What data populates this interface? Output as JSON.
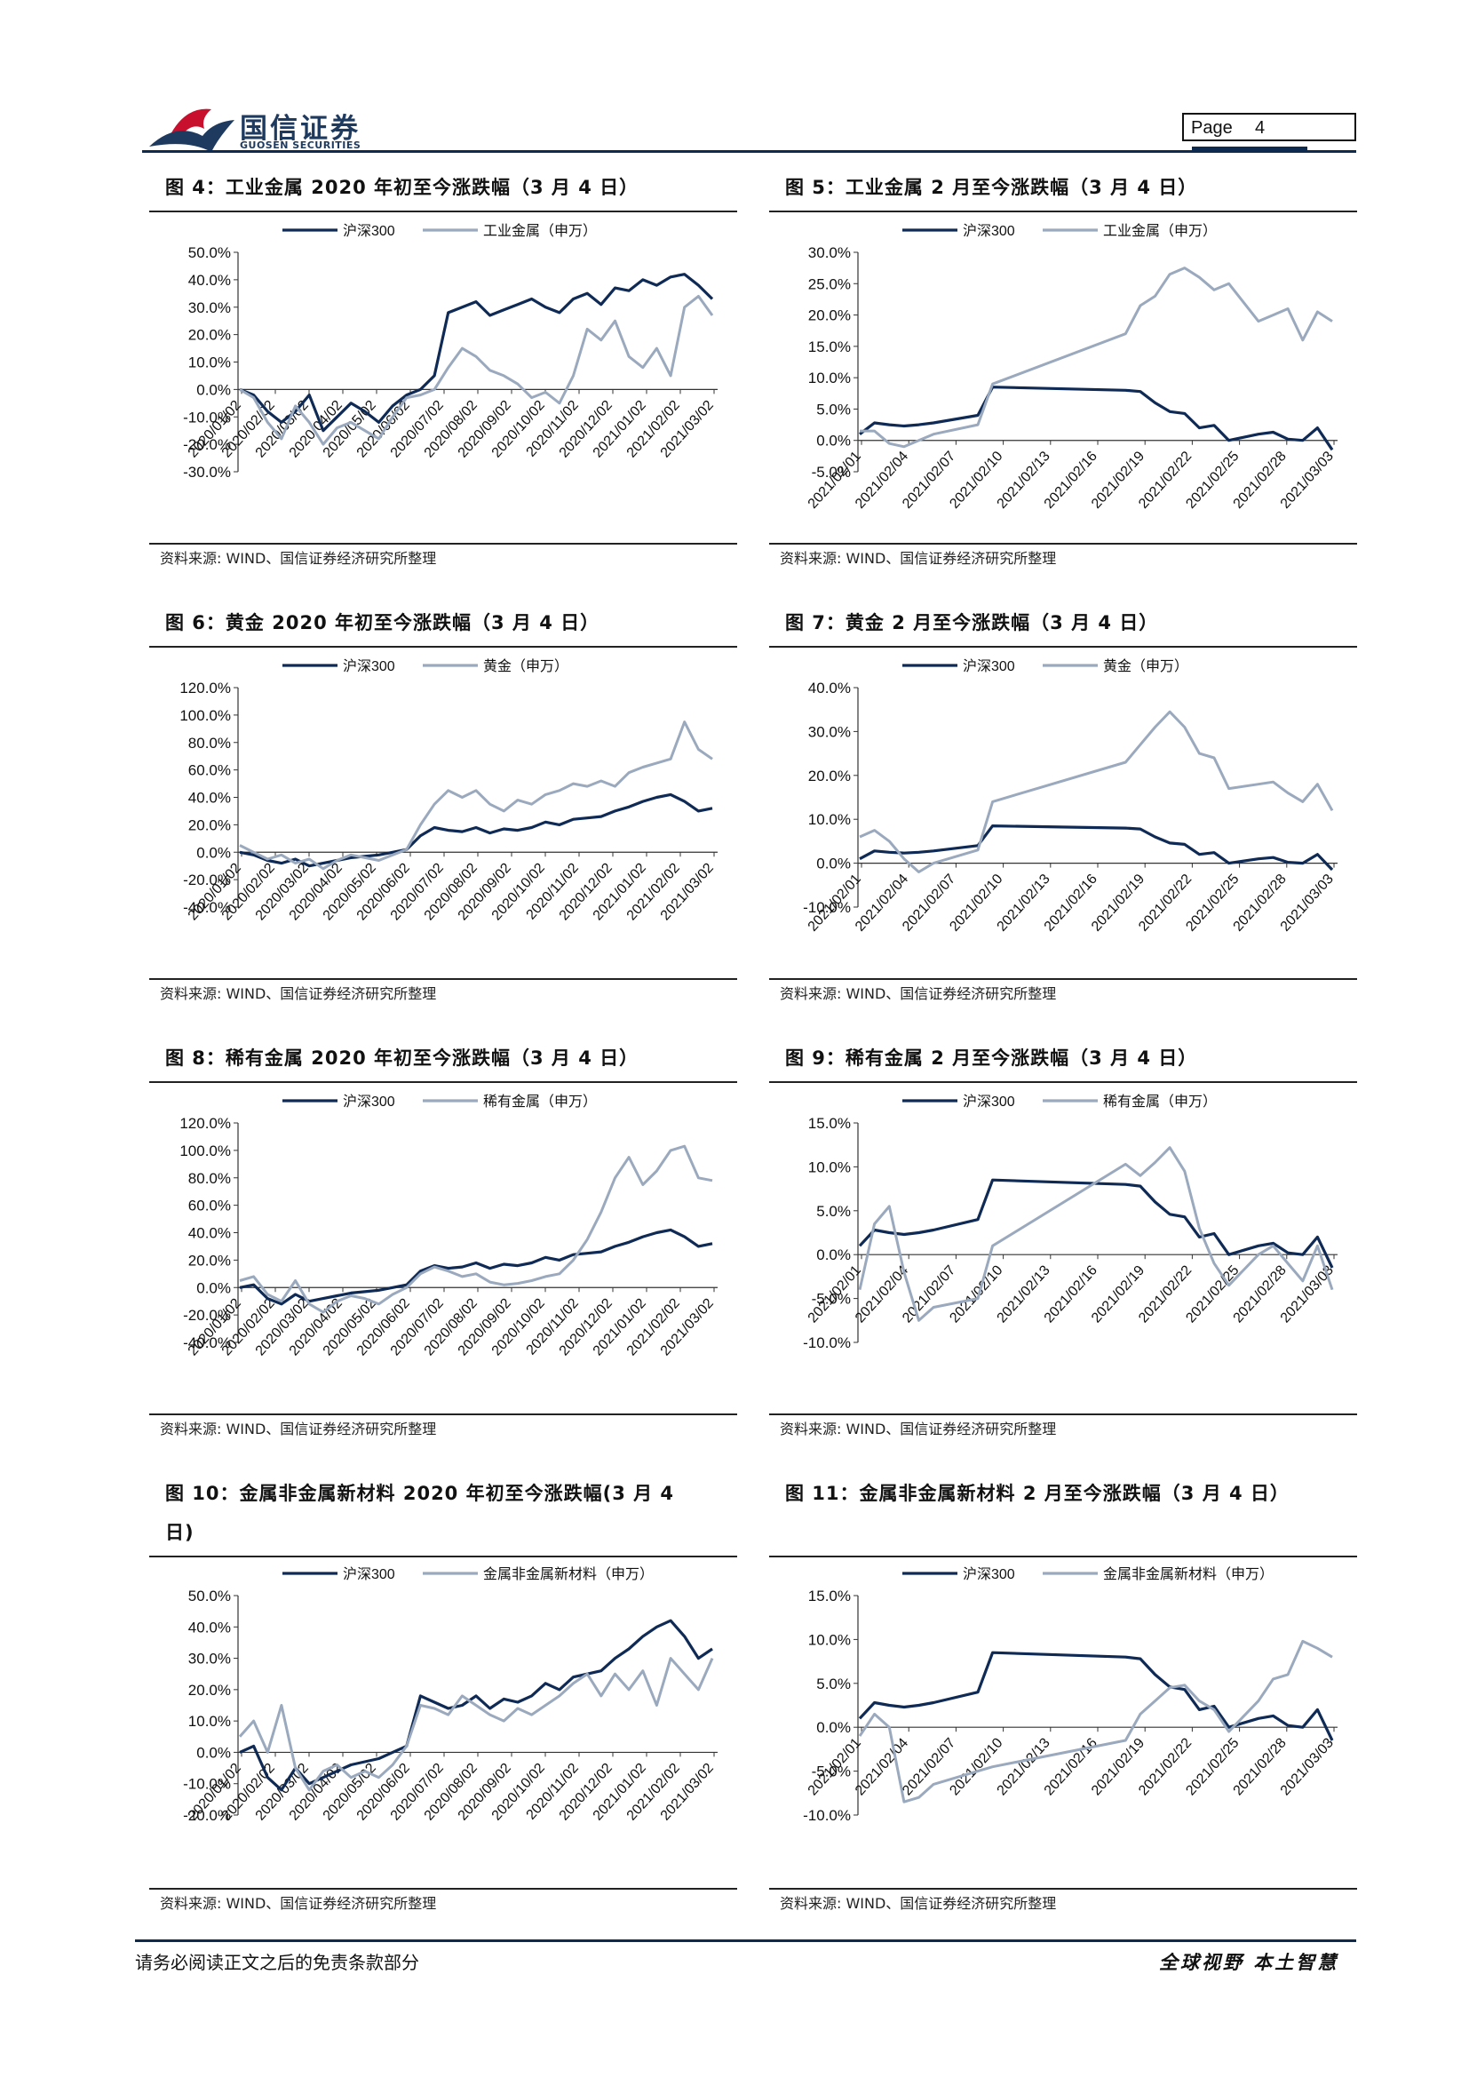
{
  "header": {
    "logo_cn": "国信证券",
    "logo_en": "GUOSEN SECURITIES",
    "page_label": "Page",
    "page_number": "4",
    "brand_color": "#1f3a5f",
    "logo_red": "#c8102e"
  },
  "footer": {
    "disclaimer": "请务必阅读正文之后的免责条款部分",
    "slogan": "全球视野   本土智慧"
  },
  "colors": {
    "hs300": "#0e2a55",
    "sector": "#9aa9bd"
  },
  "panels": [
    {
      "title": "图 4：工业金属 2020 年初至今涨跌幅（3 月 4 日）",
      "source": "资料来源: WIND、国信证券经济研究所整理",
      "chart_data": {
        "type": "line",
        "series": [
          {
            "name": "沪深300"
          },
          {
            "name": "工业金属（申万）"
          }
        ],
        "yticks": [
          "50.0%",
          "40.0%",
          "30.0%",
          "20.0%",
          "10.0%",
          "0.0%",
          "-10.0%",
          "-20.0%",
          "-30.0%"
        ],
        "ylim": [
          -30,
          50
        ],
        "xticks": [
          "2020/01/02",
          "2020/02/02",
          "2020/03/02",
          "2020/04/02",
          "2020/05/02",
          "2020/06/02",
          "2020/07/02",
          "2020/08/02",
          "2020/09/02",
          "2020/10/02",
          "2020/11/02",
          "2020/12/02",
          "2021/01/02",
          "2021/02/02",
          "2021/03/02"
        ],
        "values": [
          [
            0,
            -2,
            -8,
            -12,
            -8,
            -2,
            -15,
            -10,
            -5,
            -8,
            -12,
            -6,
            -2,
            0,
            5,
            28,
            30,
            32,
            27,
            29,
            31,
            33,
            30,
            28,
            33,
            35,
            31,
            37,
            36,
            40,
            38,
            41,
            42,
            38,
            33
          ],
          [
            0,
            -3,
            -12,
            -18,
            -6,
            -12,
            -20,
            -14,
            -12,
            -15,
            -18,
            -10,
            -3,
            -2,
            0,
            8,
            15,
            12,
            7,
            5,
            2,
            -3,
            -1,
            -5,
            5,
            22,
            18,
            25,
            12,
            8,
            15,
            5,
            30,
            34,
            27
          ]
        ]
      }
    },
    {
      "title": "图 5：工业金属 2 月至今涨跌幅（3 月 4 日）",
      "source": "资料来源: WIND、国信证券经济研究所整理",
      "chart_data": {
        "type": "line",
        "series": [
          {
            "name": "沪深300"
          },
          {
            "name": "工业金属（申万）"
          }
        ],
        "yticks": [
          "30.0%",
          "25.0%",
          "20.0%",
          "15.0%",
          "10.0%",
          "5.0%",
          "0.0%",
          "-5.0%"
        ],
        "ylim": [
          -5,
          30
        ],
        "xticks": [
          "2021/02/01",
          "2021/02/04",
          "2021/02/07",
          "2021/02/10",
          "2021/02/13",
          "2021/02/16",
          "2021/02/19",
          "2021/02/22",
          "2021/02/25",
          "2021/02/28",
          "2021/03/03"
        ],
        "x": [
          0,
          1,
          2,
          3,
          4,
          5,
          8,
          9,
          18,
          19,
          20,
          21,
          22,
          23,
          24,
          25,
          27,
          28,
          29,
          30,
          31,
          32
        ],
        "values": [
          [
            1,
            2.8,
            2.5,
            2.3,
            2.5,
            2.8,
            4,
            8.5,
            8,
            7.8,
            6,
            4.6,
            4.3,
            2,
            2.4,
            0,
            1,
            1.3,
            0.2,
            0,
            2,
            -1.5
          ],
          [
            1.5,
            1.5,
            -0.5,
            -1,
            0,
            1,
            2.5,
            9,
            17,
            21.5,
            23,
            26.5,
            27.5,
            26,
            24,
            25,
            19,
            20,
            21,
            16,
            20.5,
            19
          ]
        ]
      }
    },
    {
      "title": "图 6：黄金 2020 年初至今涨跌幅（3 月 4 日）",
      "source": "资料来源: WIND、国信证券经济研究所整理",
      "chart_data": {
        "type": "line",
        "series": [
          {
            "name": "沪深300"
          },
          {
            "name": "黄金（申万）"
          }
        ],
        "yticks": [
          "120.0%",
          "100.0%",
          "80.0%",
          "60.0%",
          "40.0%",
          "20.0%",
          "0.0%",
          "-20.0%",
          "-40.0%"
        ],
        "ylim": [
          -40,
          120
        ],
        "xticks": [
          "2020/01/02",
          "2020/02/02",
          "2020/03/02",
          "2020/04/02",
          "2020/05/02",
          "2020/06/02",
          "2020/07/02",
          "2020/08/02",
          "2020/09/02",
          "2020/10/02",
          "2020/11/02",
          "2020/12/02",
          "2021/01/02",
          "2021/02/02",
          "2021/03/02"
        ],
        "values": [
          [
            0,
            -2,
            -6,
            -8,
            -5,
            -10,
            -8,
            -6,
            -4,
            -3,
            -2,
            0,
            2,
            12,
            18,
            16,
            15,
            18,
            14,
            17,
            16,
            18,
            22,
            20,
            24,
            25,
            26,
            30,
            33,
            37,
            40,
            42,
            37,
            30,
            32
          ],
          [
            5,
            0,
            -5,
            -2,
            -8,
            -5,
            -12,
            -6,
            -2,
            -4,
            -6,
            -2,
            2,
            20,
            35,
            45,
            40,
            45,
            35,
            30,
            38,
            35,
            42,
            45,
            50,
            48,
            52,
            48,
            58,
            62,
            65,
            68,
            95,
            75,
            68
          ]
        ]
      }
    },
    {
      "title": "图 7：黄金 2 月至今涨跌幅（3 月 4 日）",
      "source": "资料来源: WIND、国信证券经济研究所整理",
      "chart_data": {
        "type": "line",
        "series": [
          {
            "name": "沪深300"
          },
          {
            "name": "黄金（申万）"
          }
        ],
        "yticks": [
          "40.0%",
          "30.0%",
          "20.0%",
          "10.0%",
          "0.0%",
          "-10.0%"
        ],
        "ylim": [
          -10,
          40
        ],
        "xticks": [
          "2021/02/01",
          "2021/02/04",
          "2021/02/07",
          "2021/02/10",
          "2021/02/13",
          "2021/02/16",
          "2021/02/19",
          "2021/02/22",
          "2021/02/25",
          "2021/02/28",
          "2021/03/03"
        ],
        "x": [
          0,
          1,
          2,
          3,
          4,
          5,
          8,
          9,
          18,
          19,
          20,
          21,
          22,
          23,
          24,
          25,
          27,
          28,
          29,
          30,
          31,
          32
        ],
        "values": [
          [
            1,
            2.8,
            2.5,
            2.3,
            2.5,
            2.8,
            4,
            8.5,
            8,
            7.8,
            6,
            4.6,
            4.3,
            2,
            2.4,
            0,
            1,
            1.3,
            0.2,
            0,
            2,
            -1.5
          ],
          [
            6,
            7.5,
            5,
            1,
            -2,
            0,
            3,
            14,
            23,
            27,
            31,
            34.5,
            31,
            25,
            24,
            17,
            18,
            18.5,
            16,
            14,
            18,
            12
          ]
        ]
      }
    },
    {
      "title": "图 8：稀有金属 2020 年初至今涨跌幅（3 月 4 日）",
      "source": "资料来源: WIND、国信证券经济研究所整理",
      "chart_data": {
        "type": "line",
        "series": [
          {
            "name": "沪深300"
          },
          {
            "name": "稀有金属（申万）"
          }
        ],
        "yticks": [
          "120.0%",
          "100.0%",
          "80.0%",
          "60.0%",
          "40.0%",
          "20.0%",
          "0.0%",
          "-20.0%",
          "-40.0%"
        ],
        "ylim": [
          -40,
          120
        ],
        "xticks": [
          "2020/01/02",
          "2020/02/02",
          "2020/03/02",
          "2020/04/02",
          "2020/05/02",
          "2020/06/02",
          "2020/07/02",
          "2020/08/02",
          "2020/09/02",
          "2020/10/02",
          "2020/11/02",
          "2020/12/02",
          "2021/01/02",
          "2021/02/02",
          "2021/03/02"
        ],
        "values": [
          [
            0,
            2,
            -8,
            -12,
            -5,
            -10,
            -8,
            -6,
            -4,
            -3,
            -2,
            0,
            2,
            12,
            16,
            14,
            15,
            18,
            14,
            17,
            16,
            18,
            22,
            20,
            24,
            25,
            26,
            30,
            33,
            37,
            40,
            42,
            37,
            30,
            32
          ],
          [
            5,
            8,
            -5,
            -10,
            5,
            -12,
            -18,
            -10,
            -6,
            -8,
            -12,
            -5,
            0,
            10,
            15,
            12,
            8,
            10,
            4,
            2,
            3,
            5,
            8,
            10,
            20,
            35,
            55,
            80,
            95,
            75,
            85,
            100,
            103,
            80,
            78
          ]
        ]
      }
    },
    {
      "title": "图 9：稀有金属 2 月至今涨跌幅（3 月 4 日）",
      "source": "资料来源: WIND、国信证券经济研究所整理",
      "chart_data": {
        "type": "line",
        "series": [
          {
            "name": "沪深300"
          },
          {
            "name": "稀有金属（申万）"
          }
        ],
        "yticks": [
          "15.0%",
          "10.0%",
          "5.0%",
          "0.0%",
          "-5.0%",
          "-10.0%"
        ],
        "ylim": [
          -10,
          15
        ],
        "xticks": [
          "2021/02/01",
          "2021/02/04",
          "2021/02/07",
          "2021/02/10",
          "2021/02/13",
          "2021/02/16",
          "2021/02/19",
          "2021/02/22",
          "2021/02/25",
          "2021/02/28",
          "2021/03/03"
        ],
        "x": [
          0,
          1,
          2,
          3,
          4,
          5,
          8,
          9,
          18,
          19,
          20,
          21,
          22,
          23,
          24,
          25,
          27,
          28,
          29,
          30,
          31,
          32
        ],
        "values": [
          [
            1,
            2.8,
            2.5,
            2.3,
            2.5,
            2.8,
            4,
            8.5,
            8,
            7.8,
            6,
            4.6,
            4.3,
            2,
            2.4,
            0,
            1,
            1.3,
            0.2,
            0,
            2,
            -1.5
          ],
          [
            -4,
            3.5,
            5.5,
            -2,
            -7.5,
            -6,
            -5,
            1,
            10.3,
            9,
            10.5,
            12.2,
            9.5,
            3,
            -1,
            -3.5,
            0,
            1,
            -1,
            -3,
            1,
            -4
          ]
        ]
      }
    },
    {
      "title": "图 10：金属非金属新材料 2020 年初至今涨跌幅(3 月 4 日)",
      "source": "资料来源: WIND、国信证券经济研究所整理",
      "chart_data": {
        "type": "line",
        "series": [
          {
            "name": "沪深300"
          },
          {
            "name": "金属非金属新材料（申万）"
          }
        ],
        "yticks": [
          "50.0%",
          "40.0%",
          "30.0%",
          "20.0%",
          "10.0%",
          "0.0%",
          "-10.0%",
          "-20.0%"
        ],
        "ylim": [
          -20,
          50
        ],
        "xticks": [
          "2020/01/02",
          "2020/02/02",
          "2020/03/02",
          "2020/04/02",
          "2020/05/02",
          "2020/06/02",
          "2020/07/02",
          "2020/08/02",
          "2020/09/02",
          "2020/10/02",
          "2020/11/02",
          "2020/12/02",
          "2021/01/02",
          "2021/02/02",
          "2021/03/02"
        ],
        "values": [
          [
            0,
            2,
            -8,
            -12,
            -5,
            -10,
            -8,
            -6,
            -4,
            -3,
            -2,
            0,
            2,
            18,
            16,
            14,
            15,
            18,
            14,
            17,
            16,
            18,
            22,
            20,
            24,
            25,
            26,
            30,
            33,
            37,
            40,
            42,
            37,
            30,
            33
          ],
          [
            5,
            10,
            0,
            15,
            -5,
            -12,
            -6,
            -4,
            -8,
            -6,
            -8,
            -4,
            2,
            15,
            14,
            12,
            18,
            15,
            12,
            10,
            14,
            12,
            15,
            18,
            22,
            25,
            18,
            25,
            20,
            26,
            15,
            30,
            25,
            20,
            30
          ]
        ]
      }
    },
    {
      "title": "图 11：金属非金属新材料 2 月至今涨跌幅（3 月 4 日）",
      "source": "资料来源: WIND、国信证券经济研究所整理",
      "chart_data": {
        "type": "line",
        "series": [
          {
            "name": "沪深300"
          },
          {
            "name": "金属非金属新材料（申万）"
          }
        ],
        "yticks": [
          "15.0%",
          "10.0%",
          "5.0%",
          "0.0%",
          "-5.0%",
          "-10.0%"
        ],
        "ylim": [
          -10,
          15
        ],
        "xticks": [
          "2021/02/01",
          "2021/02/04",
          "2021/02/07",
          "2021/02/10",
          "2021/02/13",
          "2021/02/16",
          "2021/02/19",
          "2021/02/22",
          "2021/02/25",
          "2021/02/28",
          "2021/03/03"
        ],
        "x": [
          0,
          1,
          2,
          3,
          4,
          5,
          8,
          9,
          18,
          19,
          20,
          21,
          22,
          23,
          24,
          25,
          27,
          28,
          29,
          30,
          31,
          32
        ],
        "values": [
          [
            1,
            2.8,
            2.5,
            2.3,
            2.5,
            2.8,
            4,
            8.5,
            8,
            7.8,
            6,
            4.6,
            4.3,
            2,
            2.4,
            0,
            1,
            1.3,
            0.2,
            0,
            2,
            -1.5
          ],
          [
            -1,
            1.5,
            0,
            -8.5,
            -8,
            -6.5,
            -5,
            -4.5,
            -1.5,
            1.5,
            3,
            4.5,
            4.8,
            3,
            2,
            -0.5,
            3,
            5.5,
            6,
            9.8,
            9,
            8
          ]
        ]
      }
    }
  ]
}
